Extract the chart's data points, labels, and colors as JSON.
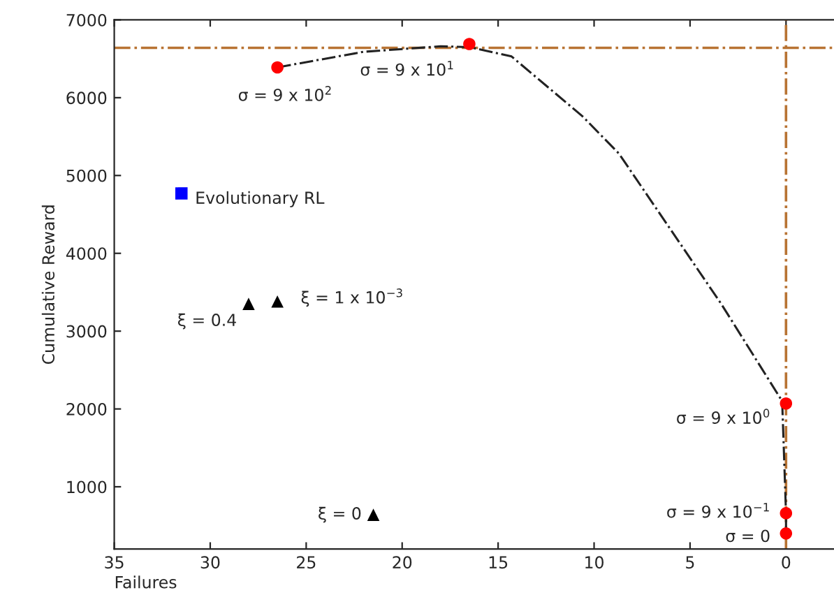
{
  "chart_data": {
    "type": "scatter",
    "xlabel": "Failures",
    "ylabel": "Cumulative Reward",
    "xlim": [
      35,
      -2.5
    ],
    "ylim": [
      200,
      7000
    ],
    "xticks": [
      35,
      30,
      25,
      20,
      15,
      10,
      5,
      0
    ],
    "yticks": [
      1000,
      2000,
      3000,
      4000,
      5000,
      6000,
      7000
    ],
    "grid": false,
    "legend": false,
    "series": [
      {
        "type": "line",
        "color": "#222222",
        "line_style": "dashdot",
        "marker": "none",
        "x": [
          26.5,
          22,
          18,
          16.5,
          14.3,
          10.6,
          8.7,
          3.35,
          0.2,
          0,
          0
        ],
        "values": [
          6390,
          6590,
          6660,
          6650,
          6530,
          5760,
          5280,
          3340,
          2100,
          660,
          400
        ]
      },
      {
        "color": "#ff0000",
        "marker": "circle",
        "x": [
          26.5,
          16.5,
          0,
          0,
          0
        ],
        "values": [
          6390,
          6690,
          2070,
          660,
          400
        ]
      },
      {
        "color": "#0000ff",
        "marker": "square",
        "x": [
          31.5
        ],
        "values": [
          4770
        ]
      },
      {
        "color": "#000000",
        "marker": "triangle",
        "x": [
          28,
          26.5,
          21.5
        ],
        "values": [
          3350,
          3380,
          640
        ]
      }
    ],
    "ref_lines": [
      {
        "axis": "y",
        "value": 6640,
        "label": null,
        "color": "#b87333",
        "line_style": "dashdot"
      },
      {
        "axis": "x",
        "value": 0,
        "label": null,
        "color": "#b87333",
        "line_style": "dashdot"
      }
    ],
    "annotations": [
      {
        "text": "σ = 9 x 10$^{2}$",
        "x": 26.5,
        "y": 6390
      },
      {
        "text": "σ = 9 x 10$^{1}$",
        "x": 16.5,
        "y": 6690
      },
      {
        "text": "σ = 9 x 10$^{0}$",
        "x": 0,
        "y": 2070
      },
      {
        "text": "σ = 9 x 10$^{−1}$",
        "x": 0,
        "y": 660
      },
      {
        "text": "σ = 0",
        "x": 0,
        "y": 400
      },
      {
        "text": "Evolutionary RL",
        "x": 31.5,
        "y": 4770
      },
      {
        "text": "ξ = 0.4",
        "x": 28,
        "y": 3350
      },
      {
        "text": "ξ = 1 x 10$^{−3}$",
        "x": 26.5,
        "y": 3380
      },
      {
        "text": "ξ = 0",
        "x": 21.5,
        "y": 640
      }
    ]
  }
}
